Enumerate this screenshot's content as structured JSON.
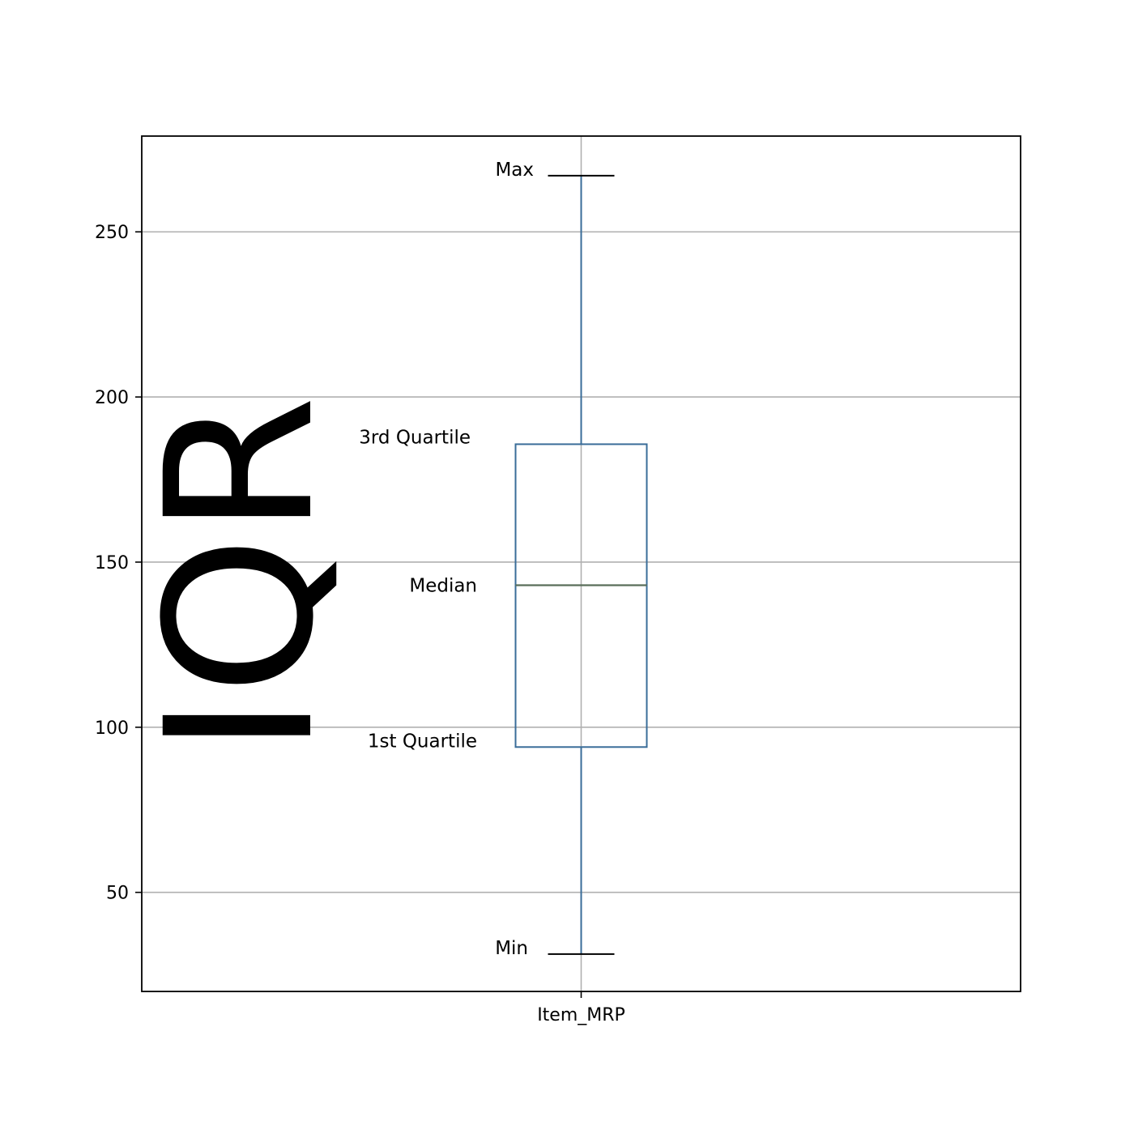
{
  "chart_data": {
    "type": "box",
    "categories": [
      "Item_MRP"
    ],
    "series": [
      {
        "values": {
          "min": 31.3,
          "q1": 94,
          "median": 143,
          "q3": 185.7,
          "max": 267
        }
      }
    ],
    "ylim": [
      20,
      279
    ],
    "yticks": [
      50,
      100,
      150,
      200,
      250
    ],
    "grid": true,
    "annotations": [
      {
        "text": "Max",
        "anchor": "max"
      },
      {
        "text": "3rd Quartile",
        "anchor": "q3"
      },
      {
        "text": "Median",
        "anchor": "median"
      },
      {
        "text": "1st Quartile",
        "anchor": "q1"
      },
      {
        "text": "Min",
        "anchor": "min"
      }
    ],
    "side_label": "IQR",
    "colors": {
      "box": "#3a6d99",
      "median": "#5a6e5a",
      "cap": "#000000",
      "grid": "#b0b0b0"
    }
  }
}
